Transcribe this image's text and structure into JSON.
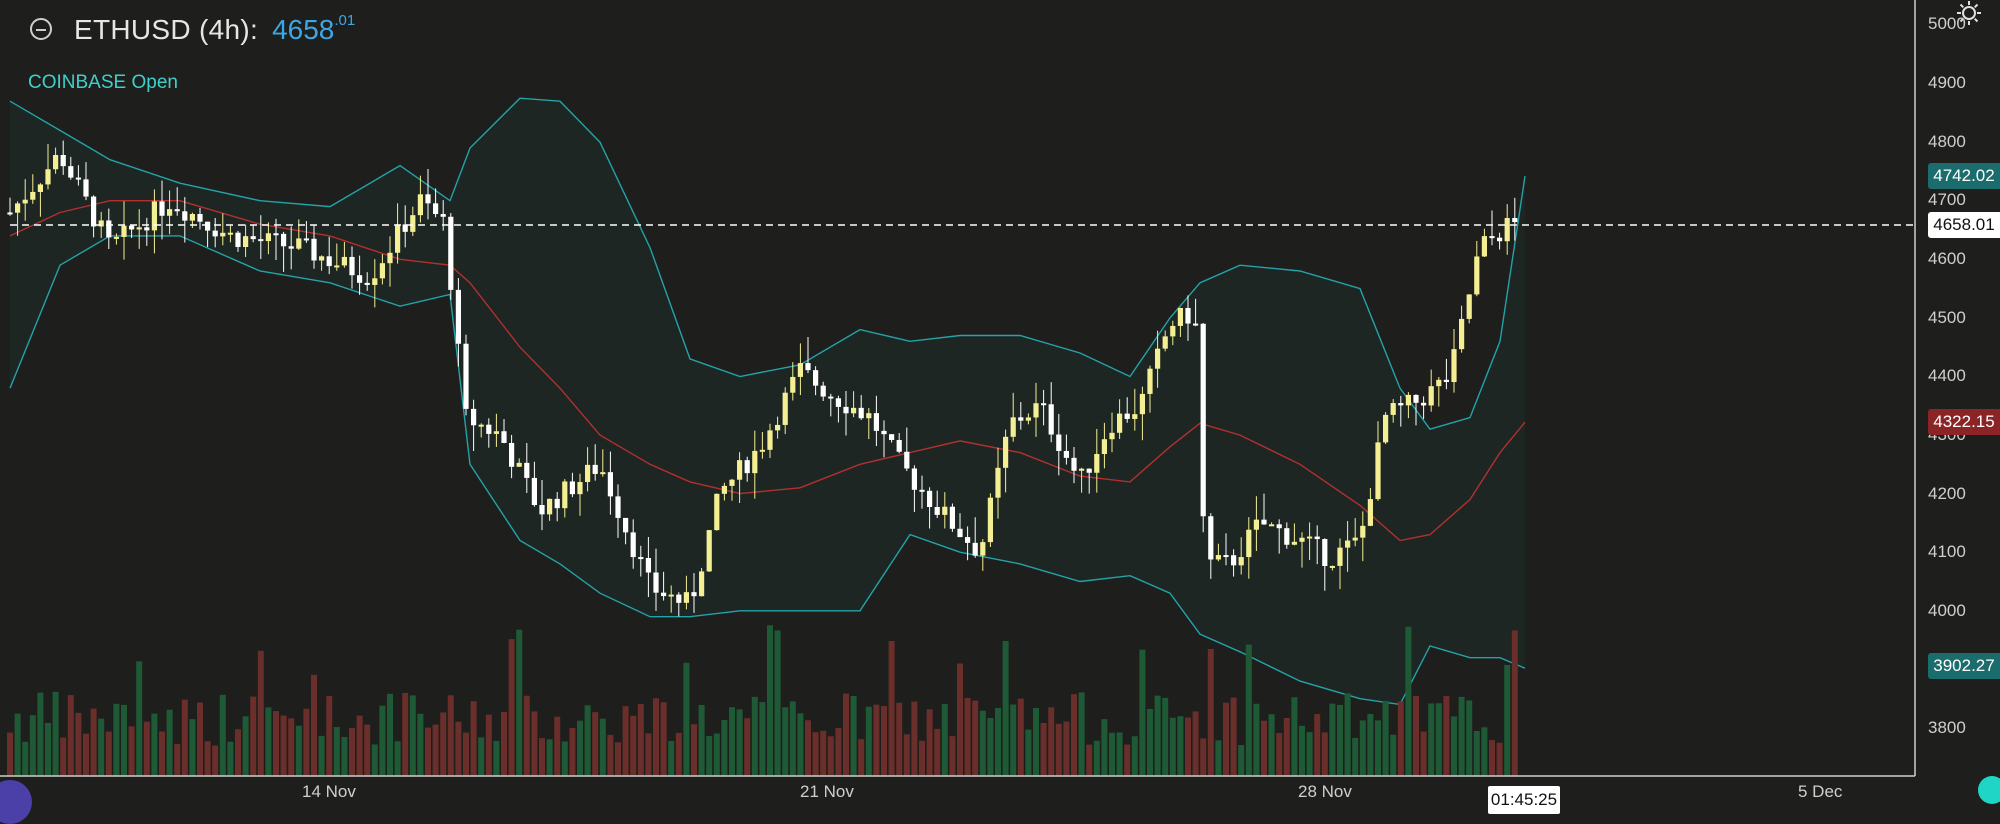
{
  "header": {
    "symbol": "ETHUSD (4h):",
    "price_main": "4658",
    "price_frac": ".01",
    "exchange_status": "COINBASE Open"
  },
  "price_axis": {
    "ticks": [
      "5000",
      "4900",
      "4800",
      "4700",
      "4600",
      "4500",
      "4400",
      "4300",
      "4200",
      "4100",
      "4000",
      "3900",
      "3800"
    ],
    "upper_band_tag": "4742.02",
    "last_price_tag": "4658.01",
    "middle_band_tag": "4322.15",
    "lower_band_tag": "3902.27"
  },
  "time_axis": {
    "labels": [
      "14 Nov",
      "21 Nov",
      "28 Nov",
      "5 Dec"
    ],
    "countdown": "01:45:25"
  },
  "colors": {
    "background": "#1e1e1c",
    "up_candle": "#f4ef93",
    "down_candle": "#ffffff",
    "band_line": "#23a3a8",
    "middle_line": "#b3302f",
    "volume_up": "#1f5a37",
    "volume_down": "#6a2e2b"
  },
  "icons": {
    "search": "search-icon",
    "settings": "gear-icon",
    "action": "fab-icon"
  }
}
